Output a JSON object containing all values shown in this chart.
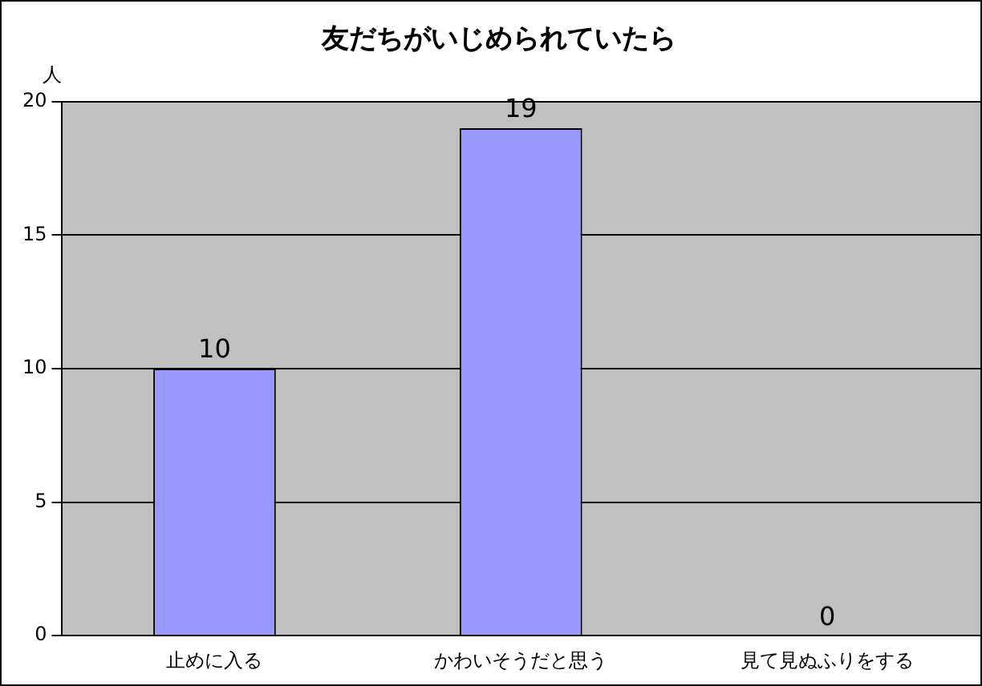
{
  "chart_data": {
    "type": "bar",
    "title": "友だちがいじめられていたら",
    "ylabel": "人",
    "categories": [
      "止めに入る",
      "かわいそうだと思う",
      "見て見ぬふりをする"
    ],
    "values": [
      10,
      19,
      0
    ],
    "color": "#9999ff",
    "ylim": [
      0,
      20
    ],
    "yticks": [
      0,
      5,
      10,
      15,
      20
    ],
    "grid": "y",
    "data_labels": true,
    "legend": false
  }
}
